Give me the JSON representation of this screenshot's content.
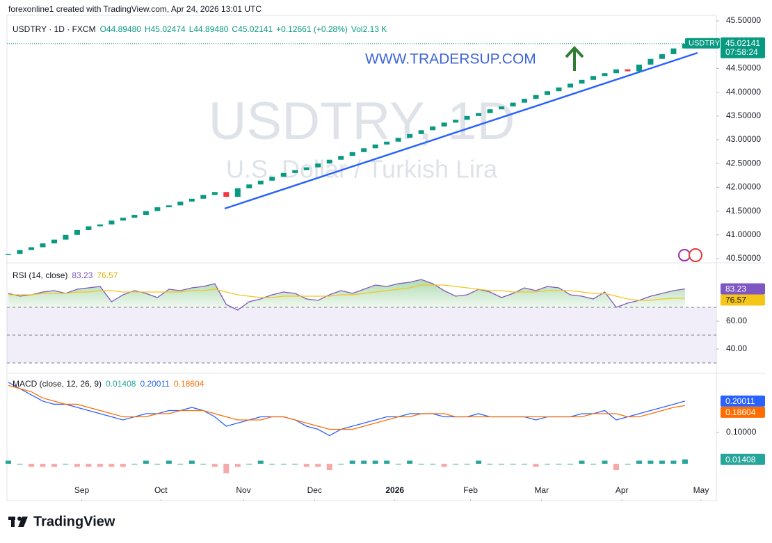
{
  "header": {
    "attribution": "forexonline1 created with TradingView.com, Apr 24, 2026 13:01 UTC"
  },
  "footer": {
    "brand": "TradingView"
  },
  "chart_data": [
    {
      "type": "candlestick",
      "symbol": "USDTRY",
      "legend": "USDTRY · 1D · FXCM",
      "ohlc_legend": [
        "O44.89480",
        "H45.02474",
        "L44.89480",
        "C45.02141",
        "+0.12661 (+0.28%)",
        "Vol2.13 K"
      ],
      "watermark": "USDTRY, 1D",
      "watermark_subtitle": "U.S. Dollar / Turkish Lira",
      "annotation": "WWW.TRADERSUP.COM",
      "countdown": "07:58:24",
      "up_color": "#089981",
      "down_color": "#f23645",
      "close": [
        40.6,
        40.68,
        40.74,
        40.82,
        40.9,
        41.0,
        41.1,
        41.18,
        41.22,
        41.3,
        41.36,
        41.42,
        41.5,
        41.58,
        41.62,
        41.7,
        41.76,
        41.84,
        41.9,
        41.8,
        41.98,
        42.06,
        42.14,
        42.22,
        42.3,
        42.36,
        42.42,
        42.5,
        42.58,
        42.66,
        42.74,
        42.82,
        42.9,
        42.96,
        43.04,
        43.12,
        43.2,
        43.28,
        43.36,
        43.42,
        43.5,
        43.56,
        43.64,
        43.7,
        43.78,
        43.86,
        43.94,
        44.02,
        44.1,
        44.18,
        44.26,
        44.34,
        44.4,
        44.48,
        44.44,
        44.58,
        44.7,
        44.8,
        44.92,
        45.02141
      ],
      "ylim": [
        40.456,
        45.617
      ],
      "yticks": [
        {
          "value": 40.5,
          "label": "40.50000"
        },
        {
          "value": 41,
          "label": "41.00000"
        },
        {
          "value": 41.5,
          "label": "41.50000"
        },
        {
          "value": 42,
          "label": "42.00000"
        },
        {
          "value": 42.5,
          "label": "42.50000"
        },
        {
          "value": 43,
          "label": "43.00000"
        },
        {
          "value": 43.5,
          "label": "43.50000"
        },
        {
          "value": 44,
          "label": "44.00000"
        },
        {
          "value": 44.5,
          "label": "44.50000"
        },
        {
          "value": 45.5,
          "label": "45.50000"
        }
      ],
      "xticks": [
        {
          "value": 6.4,
          "label": "Sep"
        },
        {
          "value": 13.3,
          "label": "Oct"
        },
        {
          "value": 20.5,
          "label": "Nov"
        },
        {
          "value": 26.7,
          "label": "Dec"
        },
        {
          "value": 33.7,
          "label": "2026"
        },
        {
          "value": 40.3,
          "label": "Feb"
        },
        {
          "value": 46.5,
          "label": "Mar"
        },
        {
          "value": 53.5,
          "label": "Apr"
        },
        {
          "value": 60.4,
          "label": "May"
        }
      ]
    },
    {
      "type": "line",
      "title": "RSI (14, close)",
      "series": [
        {
          "color": "#7e57c2",
          "values": [
            80,
            78,
            79,
            81,
            82,
            80,
            83,
            84,
            85,
            74,
            79,
            82,
            80,
            77,
            83,
            82,
            84,
            85,
            87,
            72,
            68,
            74,
            76,
            79,
            81,
            80,
            76,
            75,
            79,
            82,
            80,
            83,
            86,
            85,
            87,
            88,
            90,
            87,
            82,
            78,
            79,
            83,
            81,
            77,
            80,
            84,
            82,
            85,
            84,
            79,
            78,
            76,
            81,
            70,
            73,
            75,
            78,
            80,
            82,
            83.23
          ]
        },
        {
          "color": "#f5c518",
          "values": [
            79,
            79,
            79,
            80,
            80,
            80,
            81,
            81,
            82,
            82,
            81,
            81,
            81,
            81,
            81,
            81,
            82,
            82,
            83,
            81,
            79,
            78,
            77,
            77,
            78,
            78,
            78,
            78,
            78,
            79,
            79,
            80,
            81,
            82,
            83,
            84,
            86,
            86,
            86,
            85,
            84,
            83,
            82,
            82,
            81,
            81,
            81,
            82,
            82,
            82,
            81,
            80,
            80,
            78,
            76,
            75,
            75,
            76,
            76.5,
            76.57
          ]
        }
      ],
      "levels": [
        30,
        50,
        70
      ],
      "fill_above": 70,
      "ylim": [
        24,
        100
      ],
      "yticks": [
        {
          "value": 40,
          "label": "40.00"
        },
        {
          "value": 60,
          "label": "60.00"
        }
      ]
    },
    {
      "type": "line",
      "title": "MACD (close, 12, 26, 9)",
      "histogram": {
        "up_color": "#26a69a",
        "down_color": "#f7a9a9",
        "values": [
          0.01,
          0,
          -0.01,
          -0.01,
          -0.01,
          0,
          -0.01,
          -0.01,
          -0.01,
          -0.01,
          -0.01,
          0,
          0.01,
          0,
          0.01,
          0,
          0.01,
          0,
          -0.01,
          -0.03,
          -0.01,
          0,
          0.01,
          0,
          0,
          0,
          -0.01,
          -0.01,
          -0.02,
          0,
          0.01,
          0.01,
          0.01,
          0.01,
          0,
          0.01,
          0,
          0,
          -0.01,
          0,
          0,
          0.01,
          0,
          0,
          0,
          0,
          -0.01,
          0,
          0,
          0,
          0.01,
          0,
          0.01,
          -0.02,
          0,
          0.01,
          0.01,
          0.01,
          0.01,
          0.01408
        ]
      },
      "series": [
        {
          "color": "#2962ff",
          "values": [
            0.26,
            0.24,
            0.22,
            0.2,
            0.19,
            0.19,
            0.18,
            0.17,
            0.16,
            0.15,
            0.14,
            0.15,
            0.16,
            0.16,
            0.17,
            0.17,
            0.18,
            0.17,
            0.15,
            0.12,
            0.13,
            0.14,
            0.15,
            0.15,
            0.15,
            0.14,
            0.12,
            0.11,
            0.09,
            0.11,
            0.12,
            0.13,
            0.14,
            0.15,
            0.15,
            0.16,
            0.16,
            0.16,
            0.15,
            0.15,
            0.15,
            0.16,
            0.15,
            0.15,
            0.15,
            0.15,
            0.14,
            0.15,
            0.15,
            0.15,
            0.16,
            0.16,
            0.17,
            0.14,
            0.15,
            0.16,
            0.17,
            0.18,
            0.19,
            0.20011
          ]
        },
        {
          "color": "#ff6d00",
          "values": [
            0.25,
            0.24,
            0.23,
            0.21,
            0.2,
            0.19,
            0.19,
            0.18,
            0.17,
            0.16,
            0.15,
            0.15,
            0.15,
            0.16,
            0.16,
            0.17,
            0.17,
            0.17,
            0.16,
            0.15,
            0.14,
            0.14,
            0.14,
            0.15,
            0.15,
            0.14,
            0.13,
            0.12,
            0.11,
            0.11,
            0.11,
            0.12,
            0.13,
            0.14,
            0.15,
            0.15,
            0.16,
            0.16,
            0.16,
            0.15,
            0.15,
            0.15,
            0.15,
            0.15,
            0.15,
            0.15,
            0.15,
            0.15,
            0.15,
            0.15,
            0.15,
            0.16,
            0.16,
            0.16,
            0.15,
            0.15,
            0.16,
            0.17,
            0.18,
            0.18604
          ]
        }
      ],
      "ylim": [
        -0.113,
        0.282
      ],
      "yticks": [
        {
          "value": 0.1,
          "label": "0.10000"
        }
      ]
    }
  ]
}
